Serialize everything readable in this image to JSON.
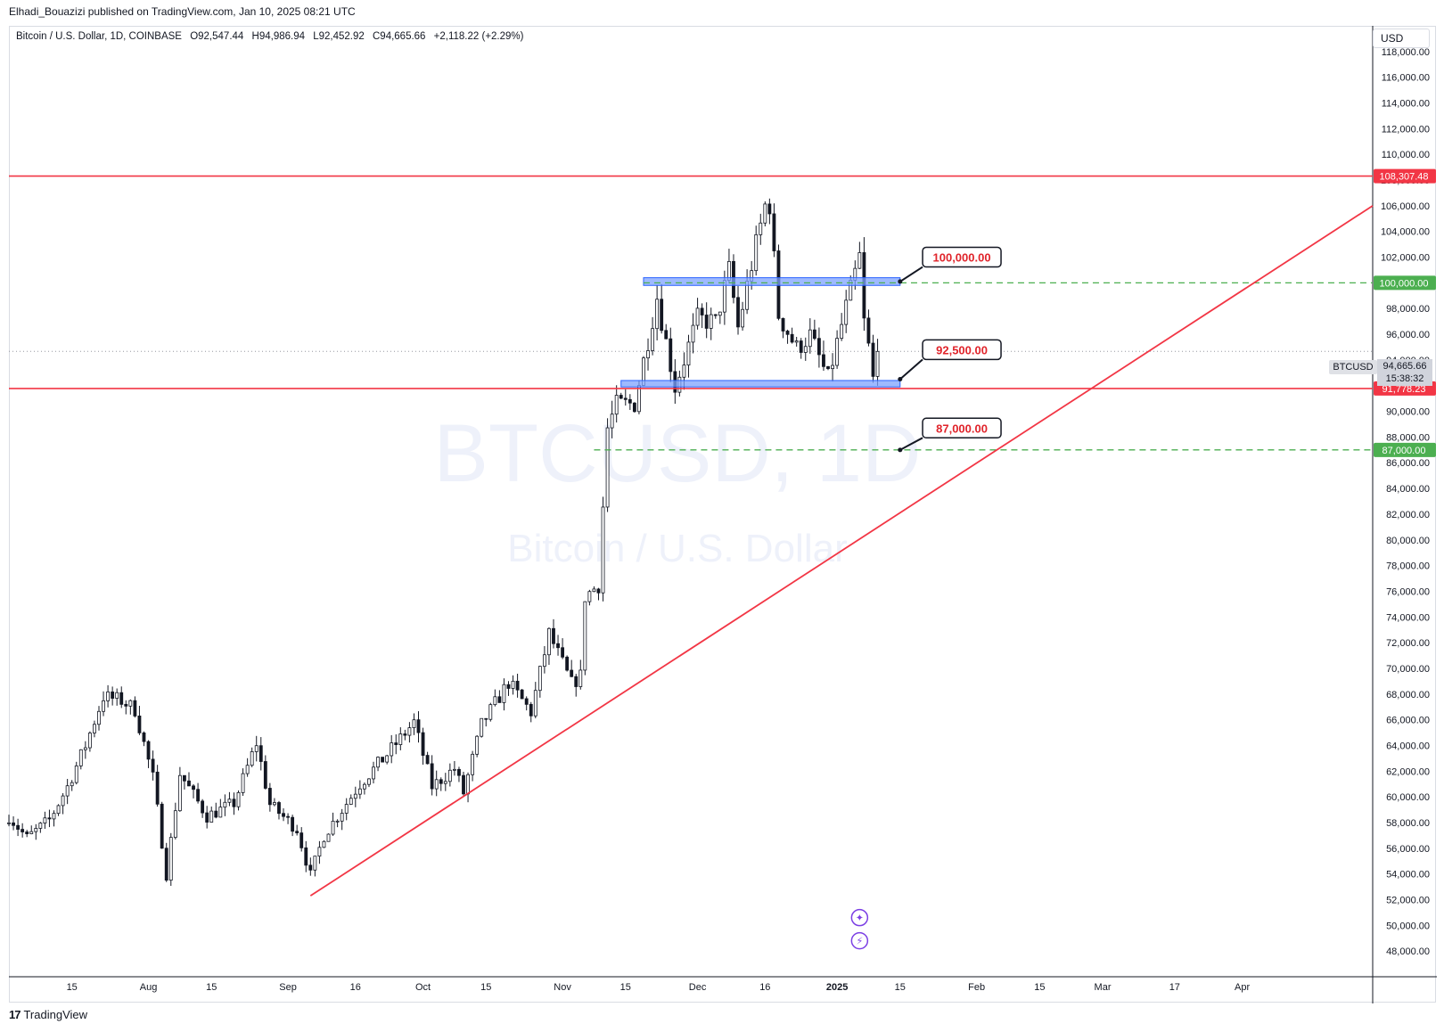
{
  "header": {
    "published": "Elhadi_Bouazizi published on TradingView.com, Jan 10, 2025 08:21 UTC"
  },
  "legend": {
    "symbol": "Bitcoin / U.S. Dollar, 1D, COINBASE",
    "o_label": "O",
    "o": "92,547.44",
    "h_label": "H",
    "h": "94,986.94",
    "l_label": "L",
    "l": "92,452.92",
    "c_label": "C",
    "c": "94,665.66",
    "change": "+2,118.22 (+2.29%)"
  },
  "currency": "USD",
  "watermark": {
    "line1": "BTCUSD, 1D",
    "line2": "Bitcoin / U.S. Dollar"
  },
  "current": {
    "ticker": "BTCUSD",
    "price": "94,665.66",
    "countdown": "15:38:32",
    "value": 94665.66
  },
  "brand": "TradingView",
  "colors": {
    "red": "#f23645",
    "green": "#4caf50",
    "blue_zone": "#5b8def",
    "up": "#ffffff",
    "down": "#131722"
  },
  "chart_data": {
    "type": "candlestick",
    "symbol": "BTCUSD",
    "interval": "1D",
    "ylim": [
      46000,
      120000
    ],
    "y_ticks": [
      48000,
      50000,
      52000,
      54000,
      56000,
      58000,
      60000,
      62000,
      64000,
      66000,
      68000,
      70000,
      72000,
      74000,
      76000,
      78000,
      80000,
      82000,
      84000,
      86000,
      88000,
      90000,
      92000,
      94000,
      96000,
      98000,
      100000,
      102000,
      104000,
      106000,
      108000,
      110000,
      112000,
      114000,
      116000,
      118000
    ],
    "y_tick_labels": [
      "48,000.00",
      "50,000.00",
      "52,000.00",
      "54,000.00",
      "56,000.00",
      "58,000.00",
      "60,000.00",
      "62,000.00",
      "64,000.00",
      "66,000.00",
      "68,000.00",
      "70,000.00",
      "72,000.00",
      "74,000.00",
      "76,000.00",
      "78,000.00",
      "80,000.00",
      "82,000.00",
      "84,000.00",
      "86,000.00",
      "88,000.00",
      "90,000.00",
      "92,000.00",
      "94,000.00",
      "96,000.00",
      "98,000.00",
      "100,000.00",
      "102,000.00",
      "104,000.00",
      "106,000.00",
      "108,000.00",
      "110,000.00",
      "112,000.00",
      "114,000.00",
      "116,000.00",
      "118,000.00"
    ],
    "x_axis": {
      "start": "2024-07-01",
      "end": "2025-04-30",
      "ticks": [
        {
          "date": "2024-07-15",
          "label": "15"
        },
        {
          "date": "2024-08-01",
          "label": "Aug"
        },
        {
          "date": "2024-08-15",
          "label": "15"
        },
        {
          "date": "2024-09-01",
          "label": "Sep"
        },
        {
          "date": "2024-09-16",
          "label": "16"
        },
        {
          "date": "2024-10-01",
          "label": "Oct"
        },
        {
          "date": "2024-10-15",
          "label": "15"
        },
        {
          "date": "2024-11-01",
          "label": "Nov"
        },
        {
          "date": "2024-11-15",
          "label": "15"
        },
        {
          "date": "2024-12-01",
          "label": "Dec"
        },
        {
          "date": "2024-12-16",
          "label": "16"
        },
        {
          "date": "2025-01-01",
          "label": "2025"
        },
        {
          "date": "2025-01-15",
          "label": "15"
        },
        {
          "date": "2025-02-01",
          "label": "Feb"
        },
        {
          "date": "2025-02-15",
          "label": "15"
        },
        {
          "date": "2025-03-01",
          "label": "Mar"
        },
        {
          "date": "2025-03-17",
          "label": "17"
        },
        {
          "date": "2025-04-01",
          "label": "Apr"
        }
      ]
    },
    "anchors": [
      {
        "date": "2024-07-01",
        "close": 58500
      },
      {
        "date": "2024-07-05",
        "close": 56800
      },
      {
        "date": "2024-07-10",
        "close": 58200
      },
      {
        "date": "2024-07-14",
        "close": 60800
      },
      {
        "date": "2024-07-18",
        "close": 64000
      },
      {
        "date": "2024-07-22",
        "close": 67800
      },
      {
        "date": "2024-07-26",
        "close": 67500
      },
      {
        "date": "2024-07-29",
        "close": 66800
      },
      {
        "date": "2024-08-02",
        "close": 61500
      },
      {
        "date": "2024-08-05",
        "close": 54000
      },
      {
        "date": "2024-08-08",
        "close": 61800
      },
      {
        "date": "2024-08-14",
        "close": 58500
      },
      {
        "date": "2024-08-20",
        "close": 59500
      },
      {
        "date": "2024-08-25",
        "close": 64200
      },
      {
        "date": "2024-08-28",
        "close": 59400
      },
      {
        "date": "2024-09-03",
        "close": 57500
      },
      {
        "date": "2024-09-06",
        "close": 53900
      },
      {
        "date": "2024-09-09",
        "close": 57000
      },
      {
        "date": "2024-09-17",
        "close": 61000
      },
      {
        "date": "2024-09-23",
        "close": 63300
      },
      {
        "date": "2024-09-29",
        "close": 65800
      },
      {
        "date": "2024-10-03",
        "close": 60800
      },
      {
        "date": "2024-10-08",
        "close": 62200
      },
      {
        "date": "2024-10-10",
        "close": 60300
      },
      {
        "date": "2024-10-14",
        "close": 65600
      },
      {
        "date": "2024-10-20",
        "close": 68900
      },
      {
        "date": "2024-10-25",
        "close": 66600
      },
      {
        "date": "2024-10-29",
        "close": 72700
      },
      {
        "date": "2024-11-03",
        "close": 68800
      },
      {
        "date": "2024-11-05",
        "close": 69400
      },
      {
        "date": "2024-11-06",
        "close": 75600
      },
      {
        "date": "2024-11-09",
        "close": 76500
      },
      {
        "date": "2024-11-11",
        "close": 88700
      },
      {
        "date": "2024-11-13",
        "close": 90500
      },
      {
        "date": "2024-11-17",
        "close": 90600
      },
      {
        "date": "2024-11-22",
        "close": 98900
      },
      {
        "date": "2024-11-26",
        "close": 91900
      },
      {
        "date": "2024-12-01",
        "close": 97200
      },
      {
        "date": "2024-12-05",
        "close": 96900
      },
      {
        "date": "2024-12-08",
        "close": 101000
      },
      {
        "date": "2024-12-10",
        "close": 96500
      },
      {
        "date": "2024-12-13",
        "close": 101400
      },
      {
        "date": "2024-12-16",
        "close": 106000
      },
      {
        "date": "2024-12-17",
        "close": 106100
      },
      {
        "date": "2024-12-19",
        "close": 97500
      },
      {
        "date": "2024-12-23",
        "close": 94900
      },
      {
        "date": "2024-12-26",
        "close": 95900
      },
      {
        "date": "2024-12-30",
        "close": 92500
      },
      {
        "date": "2025-01-03",
        "close": 98100
      },
      {
        "date": "2025-01-06",
        "close": 102000
      },
      {
        "date": "2025-01-07",
        "close": 96900
      },
      {
        "date": "2025-01-08",
        "close": 95000
      },
      {
        "date": "2025-01-09",
        "close": 92500
      },
      {
        "date": "2025-01-10",
        "close": 94665.66
      }
    ],
    "horizontal_lines": [
      {
        "price": 108307.48,
        "label": "108,307.48",
        "color": "#f23645",
        "style": "solid"
      },
      {
        "price": 91778.23,
        "label": "91,778.23",
        "color": "#f23645",
        "style": "solid"
      },
      {
        "price": 100000,
        "label": "100,000.00",
        "color": "#4caf50",
        "style": "dashed",
        "from": "2024-11-19"
      },
      {
        "price": 87000,
        "label": "87,000.00",
        "color": "#4caf50",
        "style": "dashed",
        "from": "2024-11-08"
      }
    ],
    "trendline": {
      "p1": {
        "date": "2024-09-06",
        "price": 52300
      },
      "p2": {
        "date": "2025-04-30",
        "price": 106000
      },
      "color": "#f23645"
    },
    "zones": [
      {
        "from": "2024-11-19",
        "to": "2025-01-15",
        "low": 99800,
        "high": 100400
      },
      {
        "from": "2024-11-14",
        "to": "2025-01-15",
        "low": 91900,
        "high": 92400
      }
    ],
    "callouts": [
      {
        "label": "100,000.00",
        "date": "2025-01-20",
        "price": 102000,
        "anchor_date": "2025-01-15",
        "anchor_price": 100100
      },
      {
        "label": "92,500.00",
        "date": "2025-01-20",
        "price": 94800,
        "anchor_date": "2025-01-15",
        "anchor_price": 92500
      },
      {
        "label": "87,000.00",
        "date": "2025-01-20",
        "price": 88700,
        "anchor_date": "2025-01-15",
        "anchor_price": 87000
      }
    ],
    "event_icons": [
      {
        "date": "2025-01-06",
        "price": 50600,
        "glyph": "✦",
        "name": "event-star-icon"
      },
      {
        "date": "2025-01-06",
        "price": 48800,
        "glyph": "⚡",
        "name": "event-flash-icon"
      }
    ]
  }
}
